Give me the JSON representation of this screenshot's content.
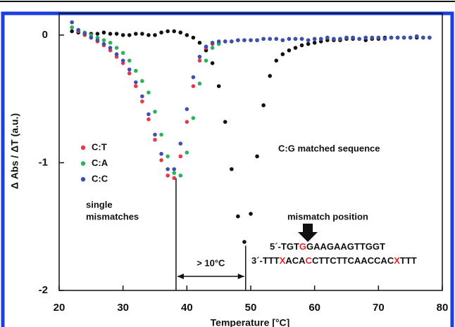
{
  "chart_data": {
    "type": "scatter",
    "x_label": "Temperature [°C]",
    "y_label": "Δ Abs / ΔT (a.u.)",
    "xlim": [
      20,
      80
    ],
    "xticks": [
      20,
      30,
      40,
      50,
      60,
      70,
      80
    ],
    "ylim": [
      -2,
      0.17
    ],
    "yticks": [
      0,
      -1,
      -2
    ],
    "x": [
      22,
      23,
      24,
      25,
      26,
      27,
      28,
      29,
      30,
      31,
      32,
      33,
      34,
      35,
      36,
      37,
      38,
      39,
      40,
      41,
      42,
      43,
      44,
      45,
      46,
      47,
      48,
      49,
      50,
      51,
      52,
      53,
      54,
      55,
      56,
      57,
      58,
      59,
      60,
      61,
      62,
      63,
      64,
      65,
      66,
      67,
      68,
      69,
      70,
      71,
      72,
      73,
      74,
      75,
      76,
      77,
      78
    ],
    "series": [
      {
        "name": "C:G matched sequence",
        "color": "#111111",
        "values": [
          0.03,
          0.02,
          0.01,
          0.01,
          0.01,
          0.02,
          0.01,
          0.01,
          0.0,
          0.0,
          0.01,
          0.01,
          0.0,
          0.0,
          0.02,
          0.03,
          0.03,
          0.02,
          0.0,
          -0.02,
          -0.06,
          -0.12,
          -0.22,
          -0.4,
          -0.68,
          -1.05,
          -1.42,
          -1.62,
          -1.4,
          -0.95,
          -0.55,
          -0.32,
          -0.2,
          -0.15,
          -0.12,
          -0.1,
          -0.08,
          -0.07,
          -0.06,
          -0.05,
          -0.04,
          -0.04,
          -0.04,
          -0.03,
          -0.03,
          -0.03,
          -0.04,
          -0.03,
          -0.03,
          -0.02,
          -0.02,
          -0.02,
          -0.02,
          -0.02,
          -0.02,
          -0.02,
          -0.02
        ]
      },
      {
        "name": "C:T",
        "color": "#e8394a",
        "values": [
          0.06,
          0.03,
          0.0,
          -0.02,
          -0.05,
          -0.08,
          -0.12,
          -0.17,
          -0.22,
          -0.3,
          -0.4,
          -0.52,
          -0.66,
          -0.82,
          -0.98,
          -1.1,
          -1.12,
          -0.95,
          -0.68,
          -0.4,
          -0.2,
          -0.1,
          -0.07,
          -0.06,
          -0.05,
          -0.05,
          -0.04,
          -0.04,
          -0.04,
          -0.04,
          -0.03,
          -0.03,
          -0.03,
          -0.04,
          -0.03,
          -0.03,
          -0.03,
          -0.04,
          -0.03,
          -0.03,
          -0.02,
          -0.03,
          -0.03,
          -0.02,
          -0.02,
          -0.03,
          -0.02,
          -0.02,
          -0.02,
          -0.03,
          -0.02,
          -0.02,
          -0.02,
          -0.02,
          -0.01,
          -0.02,
          -0.02
        ]
      },
      {
        "name": "C:A",
        "color": "#2bb35a",
        "values": [
          0.06,
          0.04,
          0.02,
          0.0,
          -0.02,
          -0.04,
          -0.06,
          -0.1,
          -0.14,
          -0.2,
          -0.28,
          -0.36,
          -0.45,
          -0.6,
          -0.78,
          -0.95,
          -1.08,
          -1.1,
          -0.92,
          -0.65,
          -0.38,
          -0.2,
          -0.1,
          -0.07,
          -0.05,
          -0.05,
          -0.04,
          -0.04,
          -0.04,
          -0.04,
          -0.03,
          -0.03,
          -0.03,
          -0.04,
          -0.03,
          -0.03,
          -0.03,
          -0.04,
          -0.03,
          -0.03,
          -0.02,
          -0.03,
          -0.03,
          -0.02,
          -0.02,
          -0.03,
          -0.02,
          -0.02,
          -0.02,
          -0.03,
          -0.02,
          -0.02,
          -0.02,
          -0.02,
          -0.01,
          -0.02,
          -0.02
        ]
      },
      {
        "name": "C:C",
        "color": "#3f4fb0",
        "values": [
          0.1,
          0.04,
          0.01,
          -0.02,
          -0.04,
          -0.07,
          -0.1,
          -0.15,
          -0.2,
          -0.27,
          -0.37,
          -0.48,
          -0.62,
          -0.78,
          -0.93,
          -1.05,
          -1.05,
          -0.85,
          -0.58,
          -0.33,
          -0.17,
          -0.09,
          -0.06,
          -0.05,
          -0.05,
          -0.05,
          -0.04,
          -0.04,
          -0.04,
          -0.04,
          -0.03,
          -0.03,
          -0.03,
          -0.04,
          -0.03,
          -0.03,
          -0.03,
          -0.04,
          -0.03,
          -0.03,
          -0.02,
          -0.03,
          -0.03,
          -0.02,
          -0.02,
          -0.03,
          -0.02,
          -0.02,
          -0.02,
          -0.03,
          -0.02,
          -0.02,
          -0.02,
          -0.02,
          -0.01,
          -0.02,
          -0.02
        ]
      }
    ],
    "legend_series": [
      1,
      2,
      3
    ],
    "annotations": {
      "matched": "C:G matched sequence",
      "single": [
        "single",
        "mismatches"
      ],
      "mismatch_position": "mismatch position",
      "range": {
        "label": "> 10°C",
        "from": 38.3,
        "to": 49.2,
        "from_y": -1.12,
        "to_y": -1.65,
        "arrow_y": -1.89
      },
      "sequences": [
        [
          {
            "text": "5´-TGT",
            "color": "#111111"
          },
          {
            "text": "G",
            "color": "#e02828"
          },
          {
            "text": "GAAGAAGTTGGT",
            "color": "#111111"
          }
        ],
        [
          {
            "text": "3´-TTT",
            "color": "#111111"
          },
          {
            "text": "X",
            "color": "#e02828"
          },
          {
            "text": "ACA",
            "color": "#111111"
          },
          {
            "text": "C",
            "color": "#e02828"
          },
          {
            "text": "CTTCTTCAACCAC",
            "color": "#111111"
          },
          {
            "text": "X",
            "color": "#e02828"
          },
          {
            "text": "TTT",
            "color": "#111111"
          }
        ]
      ]
    }
  }
}
